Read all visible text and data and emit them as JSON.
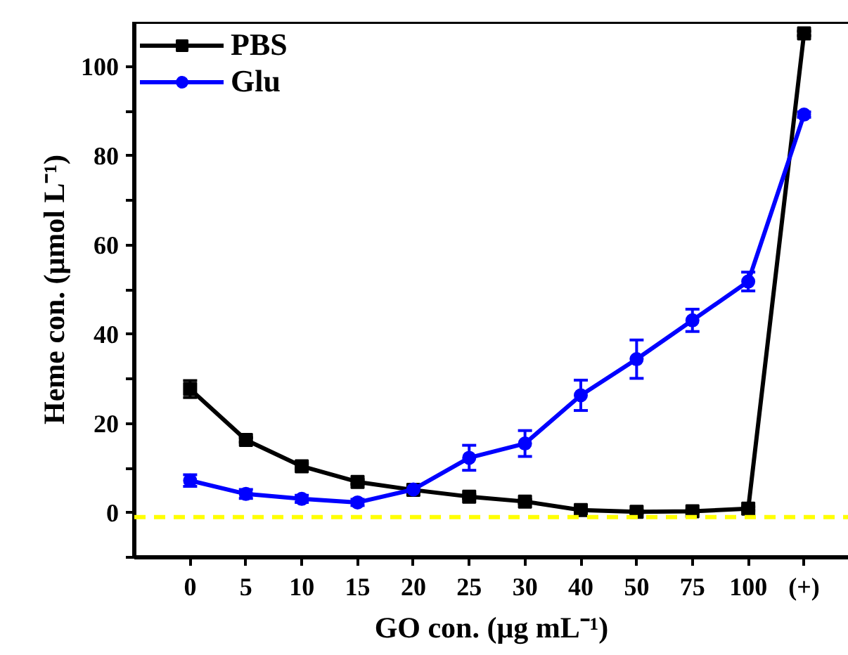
{
  "chart_data": {
    "type": "line",
    "xlabel": "GO con. (μg mL⁻¹)",
    "ylabel": "Heme con. (μmol L⁻¹)",
    "categories": [
      "0",
      "5",
      "10",
      "15",
      "20",
      "25",
      "30",
      "40",
      "50",
      "75",
      "100",
      "(+)"
    ],
    "series": [
      {
        "name": "PBS",
        "color": "#000000",
        "marker": "square",
        "values": [
          27.7,
          16.3,
          10.4,
          6.9,
          5.1,
          3.6,
          2.5,
          0.6,
          0.2,
          0.3,
          0.9,
          107.4
        ],
        "errors": [
          1.9,
          0.5,
          0.6,
          0.5,
          0.4,
          0.4,
          0.4,
          0.3,
          0.3,
          0.3,
          0.4,
          0.5
        ]
      },
      {
        "name": "Glu",
        "color": "#0000ff",
        "marker": "circle",
        "values": [
          7.2,
          4.2,
          3.1,
          2.3,
          5.2,
          12.3,
          15.5,
          26.3,
          34.4,
          43.1,
          51.8,
          89.2
        ],
        "errors": [
          1.3,
          1.0,
          0.8,
          0.7,
          null,
          2.8,
          2.9,
          3.4,
          4.3,
          2.5,
          2.1,
          0.6
        ]
      }
    ],
    "ylim": [
      -10,
      110
    ],
    "yticks": [
      {
        "value": -10,
        "label": null
      },
      0,
      {
        "value": 10,
        "label": null
      },
      20,
      {
        "value": 30,
        "label": null
      },
      40,
      {
        "value": 50,
        "label": null
      },
      60,
      {
        "value": 70,
        "label": null
      },
      80,
      {
        "value": 90,
        "label": null
      },
      100
    ],
    "ref_lines": [
      {
        "axis": "y",
        "value": -1,
        "color": "#ffff00",
        "line_style": "dashed"
      }
    ],
    "legend": "top left",
    "grid": false,
    "line_style": "solid"
  }
}
